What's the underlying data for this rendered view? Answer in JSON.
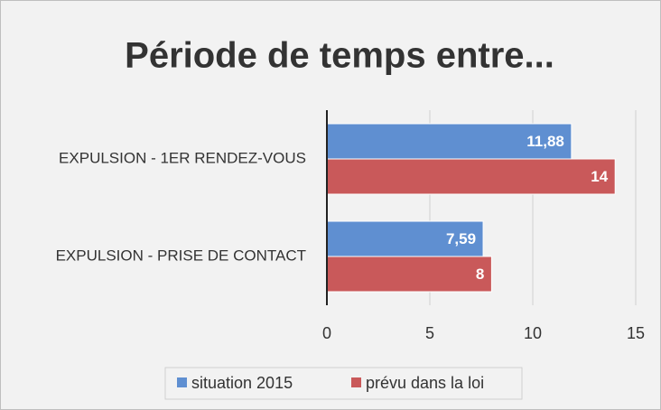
{
  "chart_data": {
    "type": "hbar",
    "title": "Période de temps entre...",
    "categories": [
      "EXPULSION - 1ER RENDEZ-VOUS",
      "EXPULSION - PRISE DE CONTACT"
    ],
    "series": [
      {
        "name": "situation 2015",
        "color": "#5f8fd1",
        "values": [
          11.88,
          7.59
        ],
        "value_labels": [
          "11,88",
          "7,59"
        ]
      },
      {
        "name": "prévu dans la loi",
        "color": "#c9595a",
        "values": [
          14,
          8
        ]
      }
    ],
    "xlim": [
      0,
      15
    ],
    "xticks": [
      0,
      5,
      10,
      15
    ],
    "grid": true,
    "legend": "bottom"
  }
}
